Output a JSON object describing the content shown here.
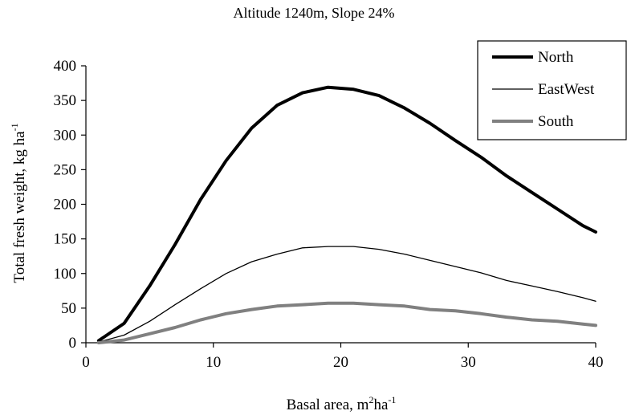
{
  "chart_data": {
    "type": "line",
    "title": "Altitude 1240m, Slope 24%",
    "xlabel": {
      "main": "Basal area, m",
      "sup1": "2",
      "mid": "ha",
      "sup2": "-1"
    },
    "ylabel": {
      "main": "Total fresh weight, kg ha",
      "sup": "-1"
    },
    "xlim": [
      0,
      40
    ],
    "ylim": [
      0,
      400
    ],
    "xticks": [
      0,
      10,
      20,
      30,
      40
    ],
    "yticks": [
      0,
      50,
      100,
      150,
      200,
      250,
      300,
      350,
      400
    ],
    "grid": false,
    "legend_position": "top-right",
    "x": [
      1,
      3,
      5,
      7,
      9,
      11,
      13,
      15,
      17,
      19,
      21,
      23,
      25,
      27,
      29,
      31,
      33,
      35,
      37,
      39,
      40
    ],
    "series": [
      {
        "name": "North",
        "color": "#000000",
        "style": "thick",
        "values": [
          3,
          28,
          82,
          142,
          207,
          263,
          310,
          343,
          361,
          369,
          366,
          357,
          339,
          317,
          292,
          268,
          241,
          217,
          193,
          169,
          160
        ]
      },
      {
        "name": "EastWest",
        "color": "#000000",
        "style": "thin",
        "values": [
          1,
          11,
          31,
          55,
          78,
          100,
          117,
          128,
          137,
          139,
          139,
          135,
          128,
          119,
          110,
          101,
          90,
          82,
          74,
          65,
          60
        ]
      },
      {
        "name": "South",
        "color": "#808080",
        "style": "thick",
        "values": [
          0,
          4,
          13,
          22,
          33,
          42,
          48,
          53,
          55,
          57,
          57,
          55,
          53,
          48,
          46,
          42,
          37,
          33,
          31,
          27,
          25
        ]
      }
    ]
  }
}
